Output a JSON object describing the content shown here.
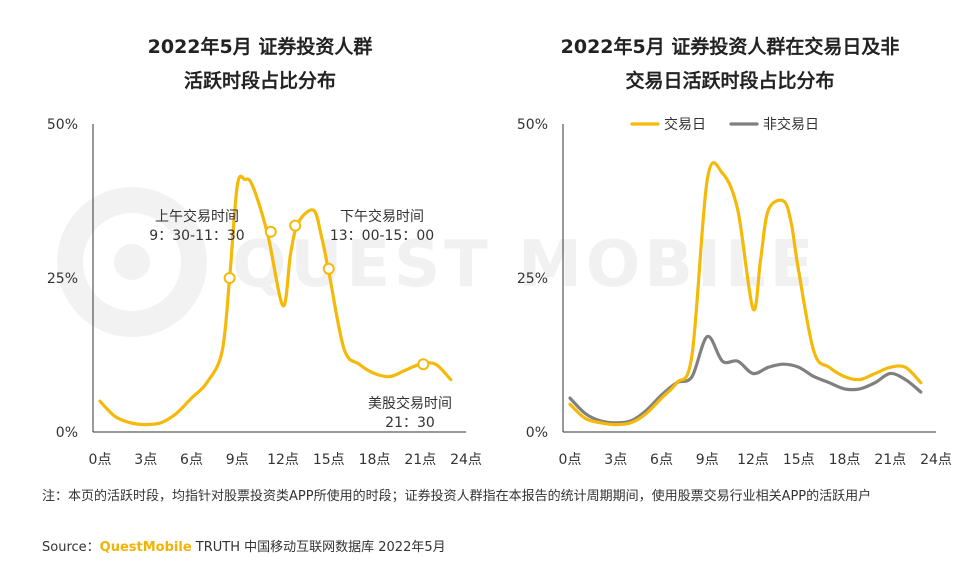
{
  "watermark": "QUEST MOBILE",
  "note": "注：本页的活跃时段，均指针对股票投资类APP所使用的时段；证券投资人群指在本报告的统计周期期间，使用股票交易行业相关APP的活跃用户",
  "source": {
    "label": "Source：",
    "brand": "QuestMobile",
    "text": "TRUTH 中国移动互联网数据库 2022年5月"
  },
  "colors": {
    "trading": "#f5b90a",
    "non_trading": "#808080",
    "axis": "#333333"
  },
  "chart_data": [
    {
      "type": "line",
      "title_lines": [
        "2022年5月 证券投资人群",
        "活跃时段占比分布"
      ],
      "x_ticks": [
        "0点",
        "3点",
        "6点",
        "9点",
        "12点",
        "15点",
        "18点",
        "21点",
        "24点"
      ],
      "y_ticks": [
        "50%",
        "25%",
        "0%"
      ],
      "xlim": [
        0,
        24
      ],
      "ylim": [
        0,
        50
      ],
      "grid": false,
      "series": [
        {
          "color": "#f5b90a",
          "points": [
            [
              0,
              5
            ],
            [
              1,
              2.5
            ],
            [
              2,
              1.5
            ],
            [
              3,
              1.2
            ],
            [
              4,
              1.5
            ],
            [
              5,
              3
            ],
            [
              6,
              5.5
            ],
            [
              7,
              8
            ],
            [
              8,
              13
            ],
            [
              8.5,
              25
            ],
            [
              9,
              40
            ],
            [
              9.5,
              41
            ],
            [
              10,
              40
            ],
            [
              11,
              32
            ],
            [
              12,
              20.5
            ],
            [
              12.5,
              29
            ],
            [
              13,
              34
            ],
            [
              14,
              36
            ],
            [
              14.5,
              32
            ],
            [
              15,
              26
            ],
            [
              16,
              13.5
            ],
            [
              17,
              11
            ],
            [
              18,
              9.5
            ],
            [
              19,
              9
            ],
            [
              20,
              10
            ],
            [
              21,
              11
            ],
            [
              22,
              11
            ],
            [
              23,
              8.5
            ]
          ]
        }
      ],
      "markers": [
        [
          8.5,
          25
        ],
        [
          11.2,
          32.5
        ],
        [
          12.8,
          33.5
        ],
        [
          15,
          26.5
        ],
        [
          21.2,
          11
        ]
      ],
      "annotations": [
        {
          "lines": [
            "上午交易时间",
            "9：30-11：30"
          ]
        },
        {
          "lines": [
            "下午交易时间",
            "13：00-15：00"
          ]
        },
        {
          "lines": [
            "美股交易时间",
            "21：30"
          ]
        }
      ]
    },
    {
      "type": "line",
      "title_lines": [
        "2022年5月 证券投资人群在交易日及非",
        "交易日活跃时段占比分布"
      ],
      "x_ticks": [
        "0点",
        "3点",
        "6点",
        "9点",
        "12点",
        "15点",
        "18点",
        "21点",
        "24点"
      ],
      "y_ticks": [
        "50%",
        "25%",
        "0%"
      ],
      "xlim": [
        0,
        24
      ],
      "ylim": [
        0,
        50
      ],
      "grid": false,
      "legend_position": "top",
      "series": [
        {
          "name": "交易日",
          "color": "#f5b90a",
          "points": [
            [
              0,
              4.5
            ],
            [
              1,
              2.2
            ],
            [
              2,
              1.5
            ],
            [
              3,
              1.2
            ],
            [
              4,
              1.5
            ],
            [
              5,
              3
            ],
            [
              6,
              5.5
            ],
            [
              7,
              8
            ],
            [
              8,
              12.5
            ],
            [
              9,
              41
            ],
            [
              10,
              42
            ],
            [
              11,
              36
            ],
            [
              12,
              20
            ],
            [
              12.5,
              28
            ],
            [
              13,
              36
            ],
            [
              14,
              37.5
            ],
            [
              14.5,
              34
            ],
            [
              15,
              26
            ],
            [
              16,
              13
            ],
            [
              17,
              10.5
            ],
            [
              18,
              9
            ],
            [
              19,
              8.5
            ],
            [
              20,
              9.5
            ],
            [
              21,
              10.5
            ],
            [
              22,
              10.5
            ],
            [
              23,
              8
            ]
          ]
        },
        {
          "name": "非交易日",
          "color": "#808080",
          "points": [
            [
              0,
              5.5
            ],
            [
              1,
              3
            ],
            [
              2,
              1.8
            ],
            [
              3,
              1.5
            ],
            [
              4,
              1.8
            ],
            [
              5,
              3.5
            ],
            [
              6,
              6
            ],
            [
              7,
              8
            ],
            [
              8,
              9
            ],
            [
              9,
              15.5
            ],
            [
              10,
              11.5
            ],
            [
              11,
              11.5
            ],
            [
              12,
              9.5
            ],
            [
              13,
              10.5
            ],
            [
              14,
              11
            ],
            [
              15,
              10.5
            ],
            [
              16,
              9
            ],
            [
              17,
              8
            ],
            [
              18,
              7
            ],
            [
              19,
              7
            ],
            [
              20,
              8
            ],
            [
              21,
              9.5
            ],
            [
              22,
              8.5
            ],
            [
              23,
              6.5
            ]
          ]
        }
      ]
    }
  ]
}
